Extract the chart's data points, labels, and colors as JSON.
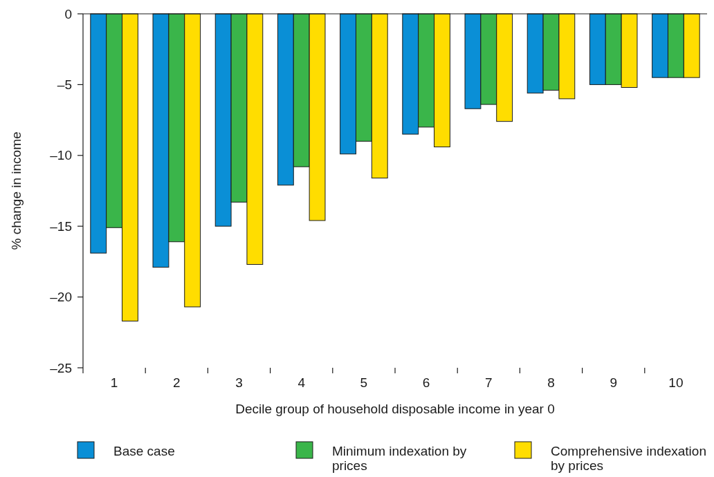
{
  "chart_data": {
    "type": "bar",
    "xlabel": "Decile group of household disposable income in year 0",
    "ylabel": "% change in income",
    "categories": [
      "1",
      "2",
      "3",
      "4",
      "5",
      "6",
      "7",
      "8",
      "9",
      "10"
    ],
    "series": [
      {
        "name": "Base case",
        "color": "#0a8fd6",
        "values": [
          -16.9,
          -17.9,
          -15.0,
          -12.1,
          -9.9,
          -8.5,
          -6.7,
          -5.6,
          -5.0,
          -4.5
        ]
      },
      {
        "name": "Minimum indexation by prices",
        "color": "#3ab54a",
        "values": [
          -15.1,
          -16.1,
          -13.3,
          -10.8,
          -9.0,
          -8.0,
          -6.4,
          -5.4,
          -5.0,
          -4.5
        ]
      },
      {
        "name": "Comprehensive indexation by prices",
        "color": "#ffdd00",
        "values": [
          -21.7,
          -20.7,
          -17.7,
          -14.6,
          -11.6,
          -9.4,
          -7.6,
          -6.0,
          -5.2,
          -4.5
        ]
      }
    ],
    "ylim": [
      -25,
      0
    ],
    "yticks": [
      0,
      {
        "value": -5,
        "label": "–5"
      },
      {
        "value": -10,
        "label": "–10"
      },
      {
        "value": -15,
        "label": "–15"
      },
      {
        "value": -20,
        "label": "–20"
      },
      {
        "value": -25,
        "label": "–25"
      }
    ],
    "grid": false,
    "legend": "bottom"
  }
}
